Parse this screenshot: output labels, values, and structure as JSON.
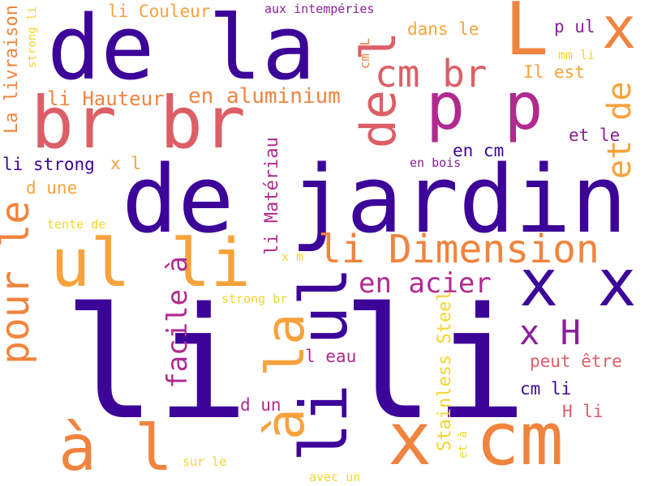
{
  "palette": {
    "indigo": "#3d0499",
    "purple": "#8b1e9a",
    "magenta": "#b12a90",
    "rose": "#dd5e66",
    "orange": "#f0843e",
    "amber": "#f8a23b",
    "yellow": "#f4d52c"
  },
  "words": [
    {
      "text": "li li",
      "color": "indigo"
    },
    {
      "text": "de jardin",
      "color": "indigo"
    },
    {
      "text": "de la",
      "color": "indigo"
    },
    {
      "text": "br br",
      "color": "rose"
    },
    {
      "text": "li ul",
      "color": "indigo"
    },
    {
      "text": "à la",
      "color": "amber"
    },
    {
      "text": "x cm",
      "color": "orange"
    },
    {
      "text": "ul li",
      "color": "amber"
    },
    {
      "text": "à l",
      "color": "orange"
    },
    {
      "text": "p p",
      "color": "magenta"
    },
    {
      "text": "x x",
      "color": "indigo"
    },
    {
      "text": "L",
      "color": "orange"
    },
    {
      "text": "x",
      "color": "orange"
    },
    {
      "text": "de l",
      "color": "rose"
    },
    {
      "text": "cm br",
      "color": "rose"
    },
    {
      "text": "li Dimension",
      "color": "orange"
    },
    {
      "text": "pour le",
      "color": "orange"
    },
    {
      "text": "et de",
      "color": "amber"
    },
    {
      "text": "facile à",
      "color": "magenta"
    },
    {
      "text": "x H",
      "color": "purple"
    },
    {
      "text": "en acier",
      "color": "magenta"
    },
    {
      "text": "li Hauteur",
      "color": "orange"
    },
    {
      "text": "en aluminium",
      "color": "orange"
    },
    {
      "text": "La livraison",
      "color": "orange"
    },
    {
      "text": "li Matériau",
      "color": "magenta"
    },
    {
      "text": "Stainless Steel",
      "color": "yellow"
    },
    {
      "text": "li Couleur",
      "color": "amber"
    },
    {
      "text": "dans le",
      "color": "amber"
    },
    {
      "text": "Il est",
      "color": "amber"
    },
    {
      "text": "p ul",
      "color": "purple"
    },
    {
      "text": "et le",
      "color": "purple"
    },
    {
      "text": "en cm",
      "color": "indigo"
    },
    {
      "text": "li strong",
      "color": "indigo"
    },
    {
      "text": "x l",
      "color": "amber"
    },
    {
      "text": "d une",
      "color": "amber"
    },
    {
      "text": "peut être",
      "color": "rose"
    },
    {
      "text": "cm li",
      "color": "indigo"
    },
    {
      "text": "H li",
      "color": "rose"
    },
    {
      "text": "l eau",
      "color": "magenta"
    },
    {
      "text": "d un",
      "color": "magenta"
    },
    {
      "text": "cm L",
      "color": "orange"
    },
    {
      "text": "aux intempéries",
      "color": "purple"
    },
    {
      "text": "en bois",
      "color": "purple"
    },
    {
      "text": "mm li",
      "color": "yellow"
    },
    {
      "text": "tente de",
      "color": "yellow"
    },
    {
      "text": "x m",
      "color": "yellow"
    },
    {
      "text": "strong br",
      "color": "yellow"
    },
    {
      "text": "strong li",
      "color": "yellow"
    },
    {
      "text": "sur le",
      "color": "yellow"
    },
    {
      "text": "avec un",
      "color": "yellow"
    },
    {
      "text": "et à",
      "color": "yellow"
    }
  ]
}
